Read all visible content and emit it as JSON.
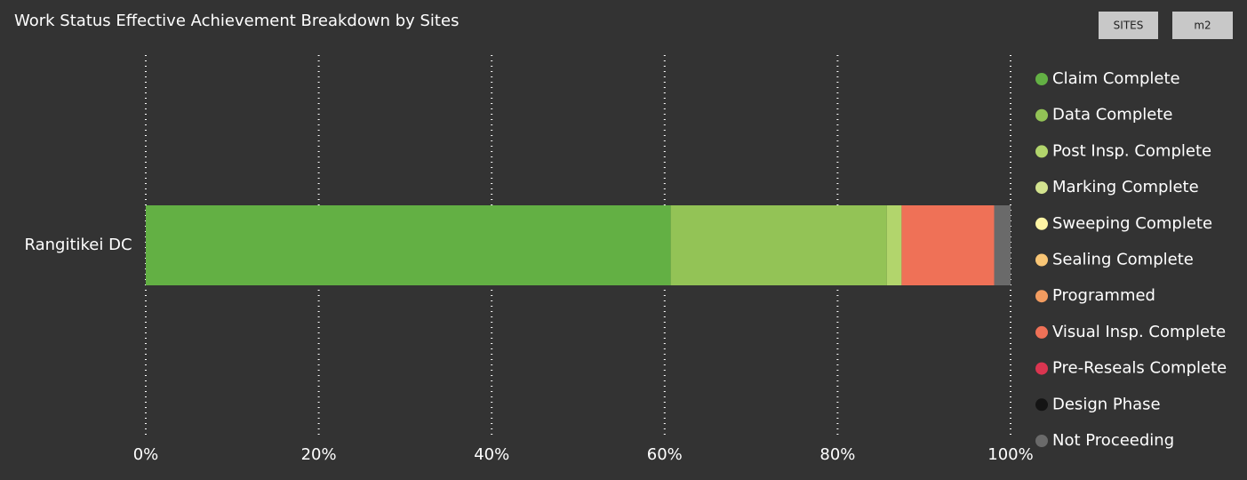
{
  "chart_data": {
    "type": "stacked-bar-horizontal",
    "title": "Work Status Effective Achievement Breakdown by Sites",
    "buttons": [
      "SITES",
      "m2"
    ],
    "categories": [
      "Rangitikei DC"
    ],
    "series": [
      {
        "name": "Claim Complete",
        "color": "#63b044",
        "values": [
          60.7
        ]
      },
      {
        "name": "Data Complete",
        "color": "#93c356",
        "values": [
          25.0
        ]
      },
      {
        "name": "Post Insp. Complete",
        "color": "#b2d56c",
        "values": [
          1.7
        ]
      },
      {
        "name": "Marking Complete",
        "color": "#d3e38f",
        "values": [
          0
        ]
      },
      {
        "name": "Sweeping Complete",
        "color": "#fff5a5",
        "values": [
          0
        ]
      },
      {
        "name": "Sealing Complete",
        "color": "#f9c676",
        "values": [
          0
        ]
      },
      {
        "name": "Programmed",
        "color": "#f29c60",
        "values": [
          0
        ]
      },
      {
        "name": "Visual Insp. Complete",
        "color": "#ef7157",
        "values": [
          10.7
        ]
      },
      {
        "name": "Pre-Reseals Complete",
        "color": "#da3550",
        "values": [
          0
        ]
      },
      {
        "name": "Design Phase",
        "color": "#141414",
        "values": [
          0
        ]
      },
      {
        "name": "Not Proceeding",
        "color": "#6a6a6a",
        "values": [
          1.9
        ]
      }
    ],
    "xlim": [
      0,
      100
    ],
    "xticks": [
      {
        "value": 0,
        "label": "0%"
      },
      {
        "value": 20,
        "label": "20%"
      },
      {
        "value": 40,
        "label": "40%"
      },
      {
        "value": 60,
        "label": "60%"
      },
      {
        "value": 80,
        "label": "80%"
      },
      {
        "value": 100,
        "label": "100%"
      }
    ],
    "grid": true,
    "legend": "right"
  }
}
